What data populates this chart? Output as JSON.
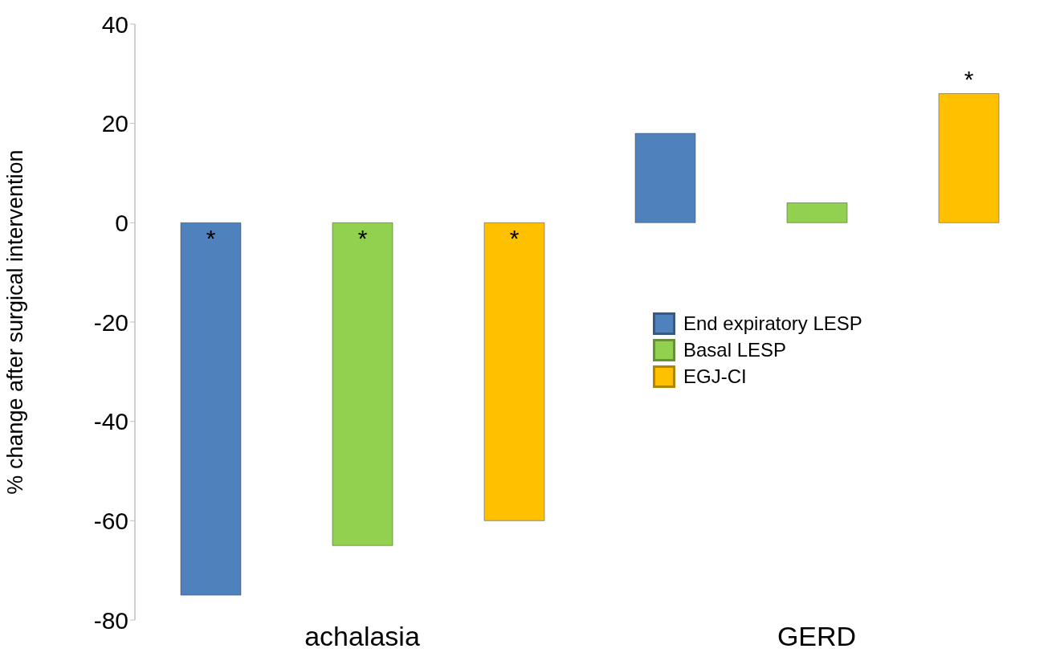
{
  "chart_data": {
    "type": "bar",
    "ylabel": "% change after surgical intervention",
    "categories": [
      "achalasia",
      "GERD"
    ],
    "series": [
      {
        "name": "End expiratory LESP",
        "color": "#4f81bd",
        "values": [
          -75,
          18
        ],
        "value_labels": [
          "*",
          null
        ]
      },
      {
        "name": "Basal LESP",
        "color": "#92d050",
        "values": [
          -65,
          4
        ],
        "value_labels": [
          "*",
          null
        ]
      },
      {
        "name": "EGJ-CI",
        "color": "#ffc000",
        "values": [
          -60,
          26
        ],
        "value_labels": [
          "*",
          "*"
        ]
      }
    ],
    "ylim": [
      -80,
      40
    ],
    "yticks": [
      -80,
      -60,
      -40,
      -20,
      0,
      20,
      40
    ],
    "legend": "right"
  }
}
